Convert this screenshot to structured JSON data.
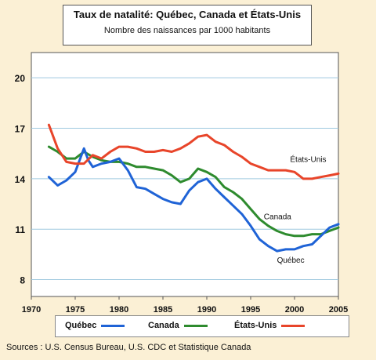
{
  "title": "Taux de natalité: Québec, Canada et États-Unis",
  "subtitle": "Nombre des naissances par 1000 habitants",
  "source": "Sources : U.S. Census Bureau, U.S. CDC et Statistique Canada",
  "chart_data": {
    "type": "line",
    "title": "Taux de natalité: Québec, Canada et États-Unis",
    "subtitle": "Nombre des naissances par 1000 habitants",
    "xlabel": "",
    "ylabel": "",
    "xlim": [
      1970,
      2005
    ],
    "ylim": [
      7,
      21.5
    ],
    "x_ticks": [
      1970,
      1975,
      1980,
      1985,
      1990,
      1995,
      2000,
      2005
    ],
    "y_ticks": [
      8,
      11,
      14,
      17,
      20
    ],
    "grid": "horizontal",
    "legend_position": "bottom",
    "series": [
      {
        "name": "Québec",
        "color": "#1f63d6",
        "x": [
          1972,
          1973,
          1974,
          1975,
          1976,
          1976.5,
          1977,
          1978,
          1979,
          1980,
          1981,
          1982,
          1983,
          1984,
          1985,
          1986,
          1987,
          1988,
          1989,
          1990,
          1991,
          1992,
          1993,
          1994,
          1995,
          1996,
          1997,
          1998,
          1999,
          2000,
          2001,
          2002,
          2003,
          2004,
          2005
        ],
        "values": [
          14.1,
          13.6,
          13.9,
          14.4,
          15.8,
          15.1,
          14.7,
          14.9,
          15.0,
          15.2,
          14.5,
          13.5,
          13.4,
          13.1,
          12.8,
          12.6,
          12.5,
          13.3,
          13.8,
          14.0,
          13.4,
          12.9,
          12.4,
          11.9,
          11.2,
          10.4,
          10.0,
          9.7,
          9.8,
          9.8,
          10.0,
          10.1,
          10.6,
          11.1,
          11.3
        ]
      },
      {
        "name": "Canada",
        "color": "#2e8b2e",
        "x": [
          1972,
          1973,
          1974,
          1975,
          1976,
          1977,
          1978,
          1979,
          1980,
          1981,
          1982,
          1983,
          1984,
          1985,
          1986,
          1987,
          1988,
          1989,
          1990,
          1991,
          1992,
          1993,
          1994,
          1995,
          1996,
          1997,
          1998,
          1999,
          2000,
          2001,
          2002,
          2003,
          2004,
          2005
        ],
        "values": [
          15.9,
          15.6,
          15.2,
          15.2,
          15.6,
          15.3,
          15.1,
          15.0,
          15.0,
          14.9,
          14.7,
          14.7,
          14.6,
          14.5,
          14.2,
          13.8,
          14.0,
          14.6,
          14.4,
          14.1,
          13.5,
          13.2,
          12.8,
          12.2,
          11.6,
          11.2,
          10.9,
          10.7,
          10.6,
          10.6,
          10.7,
          10.7,
          10.9,
          11.1
        ]
      },
      {
        "name": "États-Unis",
        "color": "#e8452a",
        "x": [
          1972,
          1973,
          1974,
          1975,
          1976,
          1977,
          1978,
          1979,
          1980,
          1981,
          1982,
          1983,
          1984,
          1985,
          1986,
          1987,
          1988,
          1989,
          1990,
          1991,
          1992,
          1993,
          1994,
          1995,
          1996,
          1997,
          1998,
          1999,
          2000,
          2001,
          2002,
          2003,
          2004,
          2005
        ],
        "values": [
          17.2,
          15.8,
          15.0,
          14.9,
          14.9,
          15.4,
          15.2,
          15.6,
          15.9,
          15.9,
          15.8,
          15.6,
          15.6,
          15.7,
          15.6,
          15.8,
          16.1,
          16.5,
          16.6,
          16.2,
          16.0,
          15.6,
          15.3,
          14.9,
          14.7,
          14.5,
          14.5,
          14.5,
          14.4,
          14.0,
          14.0,
          14.1,
          14.2,
          14.3
        ]
      }
    ],
    "annotations": [
      {
        "text": "États-Unis",
        "x": 1999.5,
        "y": 15.0,
        "color": "#111111"
      },
      {
        "text": "Canada",
        "x": 1996.5,
        "y": 11.6,
        "color": "#111111"
      },
      {
        "text": "Québec",
        "x": 1998,
        "y": 9.0,
        "color": "#111111"
      }
    ]
  }
}
